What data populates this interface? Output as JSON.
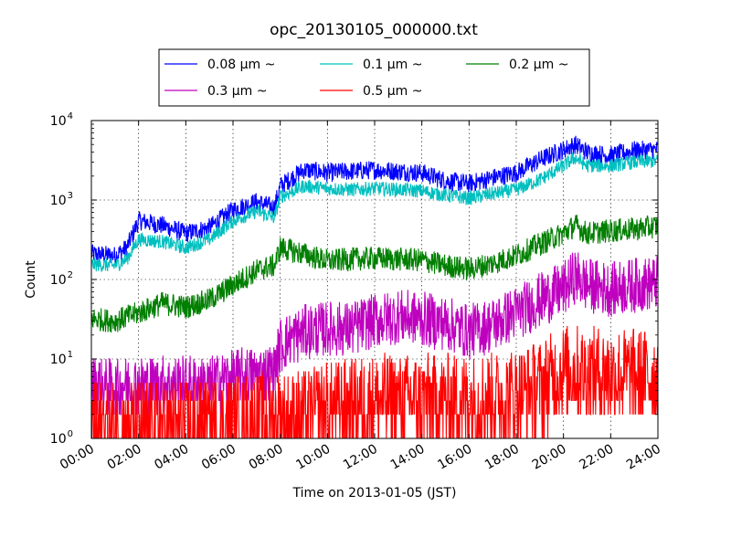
{
  "chart_data": {
    "type": "line",
    "title": "opc_20130105_000000.txt",
    "xlabel": "Time on 2013-01-05 (JST)",
    "ylabel": "Count",
    "x_ticks": [
      "00:00",
      "02:00",
      "04:00",
      "06:00",
      "08:00",
      "10:00",
      "12:00",
      "14:00",
      "16:00",
      "18:00",
      "20:00",
      "22:00",
      "24:00"
    ],
    "xlim": [
      "00:00",
      "24:00"
    ],
    "yscale": "log",
    "ylim": [
      1,
      10000
    ],
    "y_ticks": [
      {
        "base": "10",
        "exp": "0",
        "value": 1
      },
      {
        "base": "10",
        "exp": "1",
        "value": 10
      },
      {
        "base": "10",
        "exp": "2",
        "value": 100
      },
      {
        "base": "10",
        "exp": "3",
        "value": 1000
      },
      {
        "base": "10",
        "exp": "4",
        "value": 10000
      }
    ],
    "grid": true,
    "legend_position": "top",
    "series": [
      {
        "name": "0.08 μm ~",
        "color": "#0000ff",
        "x": [
          "00:00",
          "01:00",
          "01:30",
          "02:00",
          "03:00",
          "04:00",
          "05:00",
          "06:00",
          "07:00",
          "07:45",
          "08:00",
          "09:00",
          "10:00",
          "11:00",
          "12:00",
          "13:00",
          "14:00",
          "15:00",
          "16:00",
          "17:00",
          "18:00",
          "19:00",
          "20:00",
          "20:30",
          "21:00",
          "22:00",
          "23:00",
          "24:00"
        ],
        "values": [
          210,
          200,
          250,
          550,
          480,
          380,
          450,
          750,
          950,
          800,
          1500,
          2400,
          2200,
          2300,
          2400,
          2300,
          2200,
          1750,
          1600,
          1900,
          2200,
          3200,
          4300,
          5000,
          4000,
          3600,
          4200,
          4300
        ],
        "noise": 0.12
      },
      {
        "name": "0.1 μm ~",
        "color": "#00bfbf",
        "x": [
          "00:00",
          "01:00",
          "01:30",
          "02:00",
          "03:00",
          "04:00",
          "05:00",
          "06:00",
          "07:00",
          "07:45",
          "08:00",
          "09:00",
          "10:00",
          "11:00",
          "12:00",
          "13:00",
          "14:00",
          "15:00",
          "16:00",
          "17:00",
          "18:00",
          "19:00",
          "20:00",
          "20:30",
          "21:00",
          "22:00",
          "23:00",
          "24:00"
        ],
        "values": [
          155,
          150,
          180,
          320,
          300,
          250,
          320,
          550,
          720,
          600,
          1100,
          1500,
          1400,
          1350,
          1400,
          1350,
          1300,
          1150,
          1050,
          1200,
          1350,
          1800,
          2700,
          3400,
          2700,
          2700,
          3000,
          3100
        ],
        "noise": 0.09
      },
      {
        "name": "0.2 μm ~",
        "color": "#007f00",
        "x": [
          "00:00",
          "01:00",
          "02:00",
          "03:00",
          "04:00",
          "05:00",
          "06:00",
          "07:00",
          "07:45",
          "08:00",
          "09:00",
          "10:00",
          "11:00",
          "12:00",
          "13:00",
          "14:00",
          "15:00",
          "16:00",
          "17:00",
          "18:00",
          "19:00",
          "20:00",
          "20:30",
          "21:00",
          "22:00",
          "23:00",
          "24:00"
        ],
        "values": [
          32,
          30,
          38,
          50,
          45,
          55,
          85,
          130,
          150,
          250,
          210,
          170,
          180,
          185,
          180,
          175,
          150,
          135,
          160,
          200,
          280,
          380,
          480,
          380,
          410,
          430,
          470
        ],
        "noise": 0.15
      },
      {
        "name": "0.3 μm ~",
        "color": "#bf00bf",
        "x": [
          "00:00",
          "01:00",
          "02:00",
          "03:00",
          "04:00",
          "05:00",
          "06:00",
          "07:00",
          "07:45",
          "08:00",
          "09:00",
          "10:00",
          "11:00",
          "12:00",
          "13:00",
          "14:00",
          "15:00",
          "16:00",
          "17:00",
          "18:00",
          "19:00",
          "20:00",
          "20:30",
          "21:00",
          "22:00",
          "23:00",
          "24:00"
        ],
        "values": [
          5,
          4.5,
          5,
          5,
          5,
          5,
          6,
          6.5,
          7,
          15,
          22,
          24,
          24,
          30,
          34,
          32,
          28,
          22,
          27,
          38,
          55,
          75,
          110,
          85,
          75,
          85,
          90
        ],
        "noise": 0.35
      },
      {
        "name": "0.5 μm ~",
        "color": "#ff0000",
        "x": [
          "00:00",
          "02:00",
          "04:00",
          "06:00",
          "08:00",
          "09:00",
          "10:00",
          "12:00",
          "14:00",
          "16:00",
          "18:00",
          "19:00",
          "20:00",
          "22:00",
          "24:00"
        ],
        "values": [
          1.4,
          1.4,
          1.4,
          1.6,
          1.8,
          1.9,
          2.4,
          3,
          3,
          3,
          3.5,
          4.5,
          7,
          6.5,
          6
        ],
        "noise": 0.6
      }
    ]
  }
}
